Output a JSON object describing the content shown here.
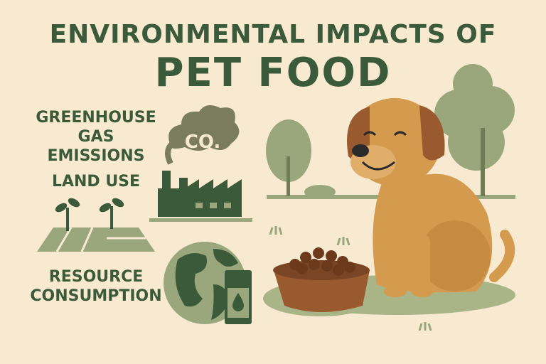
{
  "title": {
    "line1": "ENVIRONMENTAL IMPACTS OF",
    "line2": "PET FOOD"
  },
  "impacts": [
    {
      "label_line1": "GREENHOUSE",
      "label_line2": "GAS EMISSIONS",
      "icon": "factory-co2-icon"
    },
    {
      "label_line1": "LAND USE",
      "label_line2": "",
      "icon": "farmland-sprouts-icon"
    },
    {
      "label_line1": "RESOURCE",
      "label_line2": "CONSUMPTION",
      "icon": "globe-oil-can-icon"
    }
  ],
  "cloud_text": "CO.",
  "colors": {
    "background": "#f8ead0",
    "green": "#3b5a3a",
    "light_green": "#9aa77c",
    "dog": "#d49a4e",
    "bowl": "#9a5a30"
  }
}
